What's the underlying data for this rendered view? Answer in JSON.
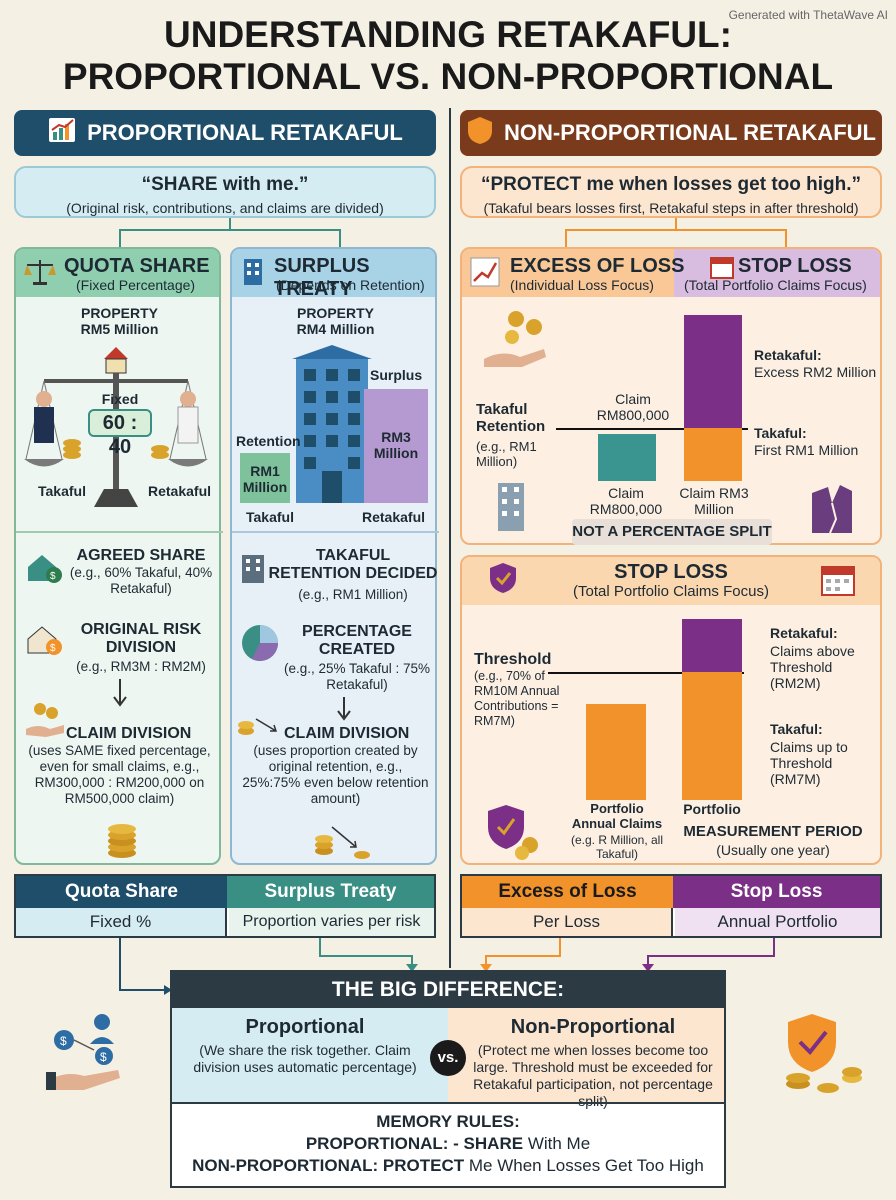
{
  "title_line1": "UNDERSTANDING RETAKAFUL:",
  "title_line2": "PROPORTIONAL VS. NON-PROPORTIONAL",
  "generated": "Generated with ThetaWave AI",
  "left": {
    "header": "PROPORTIONAL RETAKAFUL",
    "quote": "“SHARE with me.”",
    "quote_sub": "(Original risk, contributions, and claims are divided)",
    "qs": {
      "title": "QUOTA SHARE",
      "sub": "(Fixed Percentage)",
      "property": "PROPERTY",
      "property_val": "RM5 Million",
      "fixed": "Fixed",
      "ratio": "60 : 40",
      "takaful": "Takaful",
      "retakaful": "Retakaful",
      "s1_t": "AGREED SHARE",
      "s1_d": "(e.g., 60% Takaful, 40% Retakaful)",
      "s2_t": "ORIGINAL RISK DIVISION",
      "s2_d": "(e.g., RM3M : RM2M)",
      "s3_t": "CLAIM DIVISION",
      "s3_d": "(uses SAME fixed percentage, even for small claims, e.g., RM300,000 : RM200,000 on RM500,000 claim)"
    },
    "st": {
      "title": "SURPLUS TREATY",
      "sub": "(Depends on Retention)",
      "property": "PROPERTY",
      "property_val": "RM4 Million",
      "surplus": "Surplus",
      "retention": "Retention",
      "rm1": "RM1 Million",
      "rm3": "RM3 Million",
      "takaful": "Takaful",
      "retakaful": "Retakaful",
      "s1_t": "TAKAFUL RETENTION DECIDED",
      "s1_d": "(e.g., RM1 Million)",
      "s2_t": "PERCENTAGE CREATED",
      "s2_d": "(e.g., 25% Takaful : 75% Retakaful)",
      "s3_t": "CLAIM DIVISION",
      "s3_d": "(uses proportion created by original retention, e.g., 25%:75% even below retention amount)"
    }
  },
  "right": {
    "header": "NON-PROPORTIONAL RETAKAFUL",
    "quote": "“PROTECT me when losses get too high.”",
    "quote_sub": "(Takaful bears losses first, Retakaful steps in after threshold)",
    "xl": {
      "title": "EXCESS OF LOSS",
      "sub": "(Individual Loss Focus)"
    },
    "sl": {
      "title": "STOP LOSS",
      "sub": "(Total Portfolio Claims Focus)"
    },
    "xl_chart": {
      "retention": "Takaful Retention",
      "retention_eg": "(e.g., RM1 Million)",
      "claim1": "Claim RM800,000",
      "claim1_bottom": "Claim RM800,000",
      "claim2_bottom": "Claim RM3 Million",
      "retakaful": "Retakaful:",
      "retakaful_d": "Excess RM2 Million",
      "takaful": "Takaful:",
      "takaful_d": "First RM1 Million",
      "note": "NOT A PERCENTAGE SPLIT"
    },
    "sl_panel": {
      "title": "STOP LOSS",
      "sub": "(Total Portfolio Claims Focus)",
      "threshold": "Threshold",
      "threshold_d": "(e.g., 70% of RM10M Annual Contributions = RM7M)",
      "retakaful": "Retakaful:",
      "retakaful_d": "Claims above Threshold (RM2M)",
      "takaful": "Takaful:",
      "takaful_d": "Claims up to Threshold (RM7M)",
      "bar1": "Portfolio Annual Claims",
      "bar1_d": "(e.g. R Million, all Takaful)",
      "bar2": "Portfolio",
      "period": "MEASUREMENT PERIOD",
      "period_d": "(Usually one year)"
    }
  },
  "summary": {
    "qs": "Quota Share",
    "st": "Surplus Treaty",
    "qs_v": "Fixed %",
    "st_v": "Proportion varies per risk",
    "xl": "Excess of Loss",
    "sl": "Stop Loss",
    "xl_v": "Per Loss",
    "sl_v": "Annual Portfolio"
  },
  "big": {
    "title": "THE BIG DIFFERENCE:",
    "prop": "Proportional",
    "prop_d": "(We share the risk together. Claim division uses automatic percentage)",
    "vs": "vs.",
    "nonprop": "Non-Proportional",
    "nonprop_d": "(Protect me when losses become too large. Threshold must be exceeded for Retakaful participation, not percentage split)",
    "mem": "MEMORY RULES:",
    "mem1_a": "PROPORTIONAL:",
    "mem1_b": "- SHARE",
    "mem1_c": "With Me",
    "mem2_a": "NON-PROPORTIONAL:",
    "mem2_b": "PROTECT",
    "mem2_c": "Me When Losses Get Too High"
  },
  "colors": {
    "navy": "#1f4e6b",
    "teal": "#3a8f84",
    "brown": "#7a3b1c",
    "orange": "#f2922a",
    "purple": "#7b2f86",
    "light_blue": "#d6ecf3",
    "light_orange": "#fde6cf"
  }
}
